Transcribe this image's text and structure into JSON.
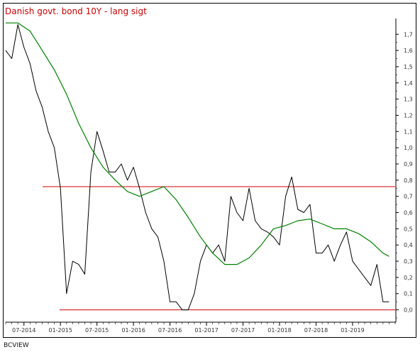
{
  "title": "Danish govt. bond 10Y - lang sigt",
  "footer": "BCVIEW",
  "colors": {
    "title": "#cc0000",
    "price": "#000000",
    "moving_average": "#008000",
    "horizontal_lines": "#cc0000",
    "frame": "#000000"
  },
  "chart_data": {
    "type": "line",
    "title": "Danish govt. bond 10Y - lang sigt",
    "xlabel": "",
    "ylabel": "",
    "x_ticks": [
      "07-2014",
      "01-2015",
      "07-2015",
      "01-2016",
      "07-2016",
      "01-2017",
      "07-2017",
      "01-2018",
      "07-2018",
      "01-2019"
    ],
    "y_ticks": [
      "1,7",
      "1,6",
      "1,5",
      "1,4",
      "1,3",
      "1,2",
      "1,1",
      "1,0",
      "0,9",
      "0,8",
      "0,7",
      "0,6",
      "0,5",
      "0,4",
      "0,3",
      "0,2",
      "0,1",
      "0,0"
    ],
    "ylim": [
      -0.05,
      1.78
    ],
    "xlim": [
      "2014-04",
      "2019-08"
    ],
    "y_axis_side": "right",
    "grid": false,
    "horizontal_lines": [
      0.76,
      0.0
    ],
    "series": [
      {
        "x": [
          "2014-04",
          "2014-05",
          "2014-06",
          "2014-07",
          "2014-08",
          "2014-09",
          "2014-10",
          "2014-11",
          "2014-12",
          "2015-01",
          "2015-02",
          "2015-03",
          "2015-04",
          "2015-05",
          "2015-06",
          "2015-07",
          "2015-08",
          "2015-09",
          "2015-10",
          "2015-11",
          "2015-12",
          "2016-01",
          "2016-02",
          "2016-03",
          "2016-04",
          "2016-05",
          "2016-06",
          "2016-07",
          "2016-08",
          "2016-09",
          "2016-10",
          "2016-11",
          "2016-12",
          "2017-01",
          "2017-02",
          "2017-03",
          "2017-04",
          "2017-05",
          "2017-06",
          "2017-07",
          "2017-08",
          "2017-09",
          "2017-10",
          "2017-11",
          "2017-12",
          "2018-01",
          "2018-02",
          "2018-03",
          "2018-04",
          "2018-05",
          "2018-06",
          "2018-07",
          "2018-08",
          "2018-09",
          "2018-10",
          "2018-11",
          "2018-12",
          "2019-01",
          "2019-02",
          "2019-03",
          "2019-04",
          "2019-05",
          "2019-06",
          "2019-07"
        ],
        "values": [
          1.6,
          1.55,
          1.76,
          1.62,
          1.52,
          1.35,
          1.25,
          1.1,
          1.0,
          0.75,
          0.1,
          0.3,
          0.28,
          0.22,
          0.85,
          1.1,
          0.98,
          0.85,
          0.85,
          0.9,
          0.8,
          0.88,
          0.75,
          0.6,
          0.5,
          0.45,
          0.3,
          0.05,
          0.05,
          0.0,
          0.0,
          0.1,
          0.3,
          0.4,
          0.35,
          0.4,
          0.3,
          0.7,
          0.6,
          0.55,
          0.75,
          0.55,
          0.5,
          0.48,
          0.45,
          0.4,
          0.7,
          0.82,
          0.62,
          0.6,
          0.65,
          0.35,
          0.35,
          0.4,
          0.3,
          0.4,
          0.48,
          0.3,
          0.25,
          0.2,
          0.15,
          0.28,
          0.05,
          0.05
        ]
      },
      {
        "x": [
          "2014-04",
          "2014-06",
          "2014-08",
          "2014-10",
          "2014-12",
          "2015-02",
          "2015-04",
          "2015-06",
          "2015-08",
          "2015-10",
          "2015-12",
          "2016-02",
          "2016-04",
          "2016-06",
          "2016-08",
          "2016-10",
          "2016-12",
          "2017-02",
          "2017-04",
          "2017-06",
          "2017-08",
          "2017-10",
          "2017-12",
          "2018-02",
          "2018-04",
          "2018-06",
          "2018-08",
          "2018-10",
          "2018-12",
          "2019-02",
          "2019-04",
          "2019-06",
          "2019-07"
        ],
        "values": [
          1.77,
          1.77,
          1.72,
          1.6,
          1.48,
          1.33,
          1.15,
          1.0,
          0.88,
          0.8,
          0.73,
          0.7,
          0.73,
          0.76,
          0.68,
          0.57,
          0.45,
          0.35,
          0.28,
          0.28,
          0.32,
          0.4,
          0.5,
          0.52,
          0.55,
          0.56,
          0.53,
          0.5,
          0.5,
          0.47,
          0.42,
          0.35,
          0.33
        ]
      }
    ]
  }
}
